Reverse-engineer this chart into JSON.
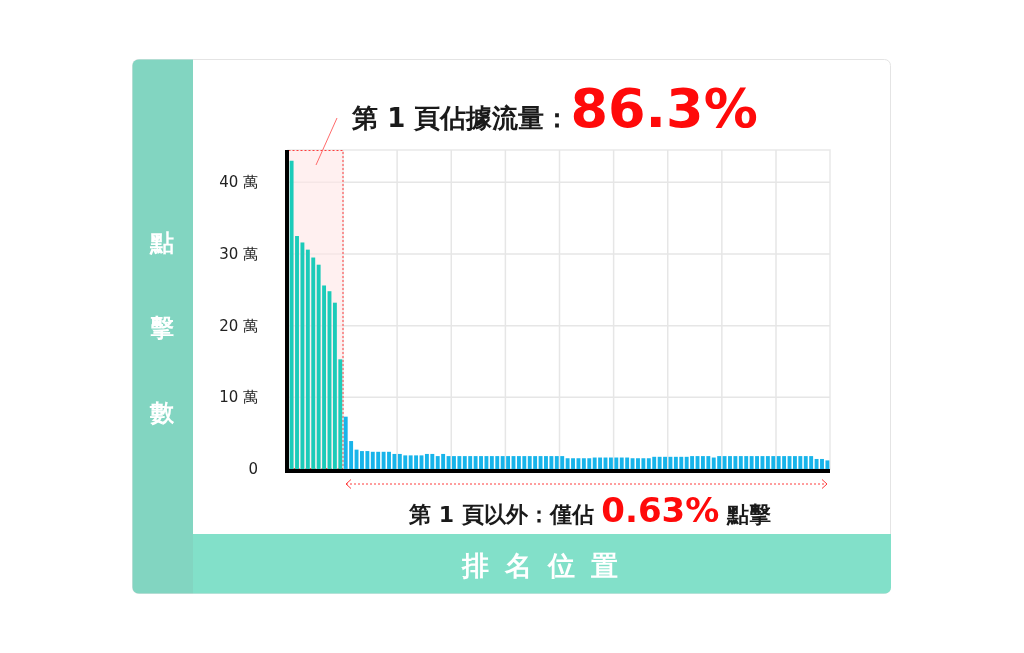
{
  "chart_data": {
    "type": "bar",
    "title": "第 1 頁佔據流量：86.3%",
    "xlabel": "排名位置",
    "ylabel": "點擊數",
    "annotations": [
      "第 1 頁以外：僅佔 0.63% 點擊"
    ],
    "categories": [
      null,
      null,
      null,
      null,
      null,
      null,
      null,
      null,
      null,
      null,
      null,
      null,
      null,
      null,
      null,
      null,
      null,
      null,
      null,
      null,
      null,
      null,
      null,
      null,
      null,
      null,
      null,
      null,
      null,
      null,
      null,
      null,
      null,
      null,
      null,
      null,
      null,
      null,
      null,
      null,
      null,
      null,
      null,
      null,
      null,
      null,
      null,
      null,
      null,
      null,
      null,
      null,
      null,
      null,
      null,
      null,
      null,
      null,
      null,
      null,
      null,
      null,
      null,
      null,
      null,
      null,
      null,
      null,
      null,
      null,
      null,
      null,
      null,
      null,
      null,
      null,
      null,
      null,
      null,
      null,
      null,
      null,
      null,
      null,
      null,
      null,
      null,
      null,
      null,
      null,
      null,
      null,
      null,
      null,
      null,
      null,
      null,
      null,
      null,
      null
    ],
    "values": [
      43.0,
      32.5,
      31.6,
      30.6,
      29.5,
      28.5,
      25.6,
      24.8,
      23.2,
      15.3,
      7.3,
      3.9,
      2.7,
      2.5,
      2.5,
      2.4,
      2.4,
      2.4,
      2.4,
      2.1,
      2.1,
      1.9,
      1.9,
      1.9,
      1.9,
      2.1,
      2.1,
      1.8,
      2.1,
      1.8,
      1.8,
      1.8,
      1.8,
      1.8,
      1.8,
      1.8,
      1.8,
      1.8,
      1.8,
      1.8,
      1.8,
      1.8,
      1.8,
      1.8,
      1.8,
      1.8,
      1.8,
      1.8,
      1.8,
      1.8,
      1.8,
      1.5,
      1.5,
      1.5,
      1.5,
      1.5,
      1.6,
      1.6,
      1.6,
      1.6,
      1.6,
      1.6,
      1.6,
      1.5,
      1.5,
      1.5,
      1.5,
      1.7,
      1.7,
      1.7,
      1.7,
      1.7,
      1.7,
      1.7,
      1.8,
      1.8,
      1.8,
      1.8,
      1.6,
      1.8,
      1.8,
      1.8,
      1.8,
      1.8,
      1.8,
      1.8,
      1.8,
      1.8,
      1.8,
      1.8,
      1.8,
      1.8,
      1.8,
      1.8,
      1.8,
      1.8,
      1.8,
      1.4,
      1.4,
      1.2
    ],
    "colors": [
      "#1ccbb9",
      "#1ccbb9",
      "#1ccbb9",
      "#1ccbb9",
      "#1ccbb9",
      "#1ccbb9",
      "#1ccbb9",
      "#1ccbb9",
      "#1ccbb9",
      "#1ccbb9",
      "#18b4ea",
      "#18b4ea",
      "#18b4ea",
      "#18b4ea",
      "#18b4ea",
      "#18b4ea",
      "#18b4ea",
      "#18b4ea",
      "#18b4ea",
      "#18b4ea",
      "#18b4ea",
      "#18b4ea",
      "#18b4ea",
      "#18b4ea",
      "#18b4ea",
      "#18b4ea",
      "#18b4ea",
      "#18b4ea",
      "#18b4ea",
      "#18b4ea",
      "#18b4ea",
      "#18b4ea",
      "#18b4ea",
      "#18b4ea",
      "#18b4ea",
      "#18b4ea",
      "#18b4ea",
      "#18b4ea",
      "#18b4ea",
      "#18b4ea",
      "#18b4ea",
      "#18b4ea",
      "#18b4ea",
      "#18b4ea",
      "#18b4ea",
      "#18b4ea",
      "#18b4ea",
      "#18b4ea",
      "#18b4ea",
      "#18b4ea",
      "#18b4ea",
      "#18b4ea",
      "#18b4ea",
      "#18b4ea",
      "#18b4ea",
      "#18b4ea",
      "#18b4ea",
      "#18b4ea",
      "#18b4ea",
      "#18b4ea",
      "#18b4ea",
      "#18b4ea",
      "#18b4ea",
      "#18b4ea",
      "#18b4ea",
      "#18b4ea",
      "#18b4ea",
      "#18b4ea",
      "#18b4ea",
      "#18b4ea",
      "#18b4ea",
      "#18b4ea",
      "#18b4ea",
      "#18b4ea",
      "#18b4ea",
      "#18b4ea",
      "#18b4ea",
      "#18b4ea",
      "#18b4ea",
      "#18b4ea",
      "#18b4ea",
      "#18b4ea",
      "#18b4ea",
      "#18b4ea",
      "#18b4ea",
      "#18b4ea",
      "#18b4ea",
      "#18b4ea",
      "#18b4ea",
      "#18b4ea",
      "#18b4ea",
      "#18b4ea",
      "#18b4ea",
      "#18b4ea",
      "#18b4ea",
      "#18b4ea",
      "#18b4ea",
      "#18b4ea",
      "#18b4ea",
      "#18b4ea"
    ],
    "ylim": [
      0,
      44.5
    ],
    "yticks": [
      0,
      {
        "value": 10,
        "label": "10 萬"
      },
      {
        "value": 20,
        "label": "20 萬"
      },
      {
        "value": 30,
        "label": "30 萬"
      },
      {
        "value": 40,
        "label": "40 萬"
      }
    ],
    "grid": true,
    "tick_labels": "y"
  }
}
